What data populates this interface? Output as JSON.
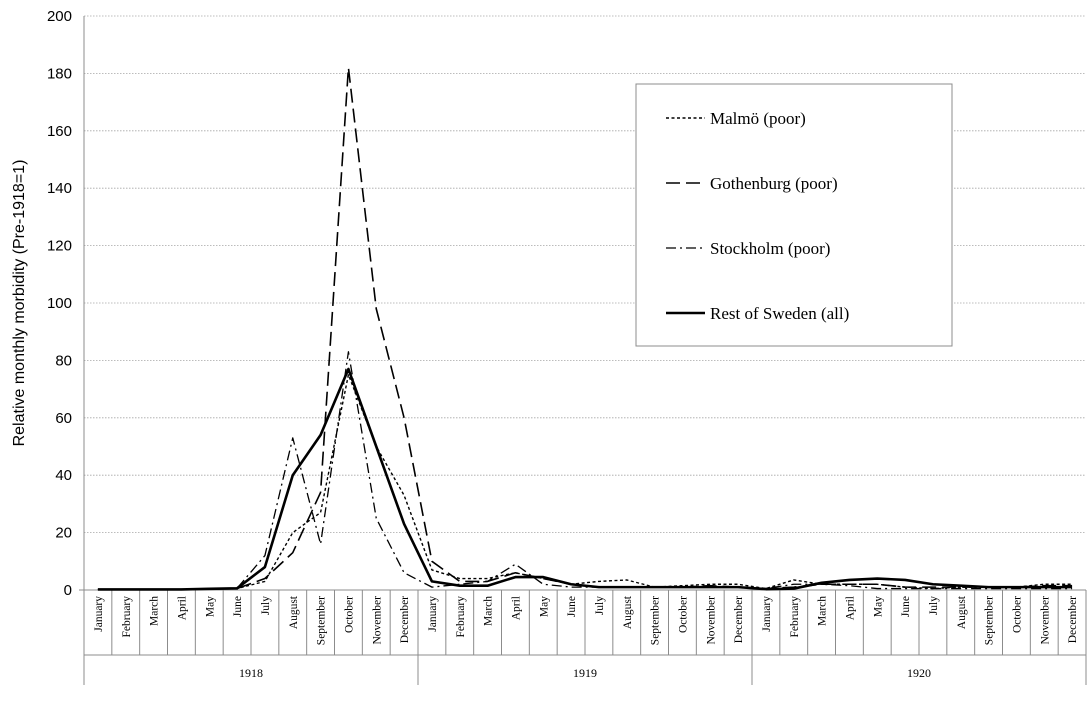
{
  "chart_data": {
    "type": "line",
    "title": "",
    "xlabel": "",
    "ylabel": "Relative monthly morbidity (Pre-1918=1)",
    "ylim": [
      0,
      200
    ],
    "yticks": [
      0,
      20,
      40,
      60,
      80,
      100,
      120,
      140,
      160,
      180,
      200
    ],
    "grid": true,
    "legend_position": "top-right",
    "categories": [
      "January",
      "February",
      "March",
      "April",
      "May",
      "June",
      "July",
      "August",
      "September",
      "October",
      "November",
      "December",
      "January",
      "February",
      "March",
      "April",
      "May",
      "June",
      "July",
      "August",
      "September",
      "October",
      "November",
      "December",
      "January",
      "February",
      "March",
      "April",
      "May",
      "June",
      "July",
      "August",
      "September",
      "October",
      "November",
      "December"
    ],
    "groups": [
      {
        "label": "1918",
        "start": 0,
        "end": 11
      },
      {
        "label": "1919",
        "start": 12,
        "end": 23
      },
      {
        "label": "1920",
        "start": 24,
        "end": 35
      }
    ],
    "series": [
      {
        "name": "Malmö (poor)",
        "dash": "short-dash",
        "values": [
          0.2,
          0.2,
          0.2,
          0.2,
          0.4,
          0.5,
          3,
          20,
          27,
          75,
          50,
          33,
          7,
          4,
          4,
          6,
          4,
          2,
          3,
          3.5,
          1,
          1.5,
          2,
          2,
          0.5,
          3.5,
          2,
          2,
          2,
          1,
          0.5,
          1,
          1,
          1,
          2,
          2
        ]
      },
      {
        "name": "Gothenburg (poor)",
        "dash": "long-dash",
        "values": [
          0.2,
          0.2,
          0.2,
          0.2,
          0.3,
          0.5,
          4,
          13,
          34,
          182,
          98,
          60,
          10,
          3,
          3,
          6,
          4,
          2,
          1,
          1,
          1,
          1,
          1.5,
          1,
          0.5,
          1,
          2,
          2,
          2,
          1,
          1,
          1,
          1,
          1,
          1.5,
          1.5
        ]
      },
      {
        "name": "Stockholm (poor)",
        "dash": "dash-dot",
        "values": [
          0.2,
          0.2,
          0.2,
          0.2,
          0.3,
          0.6,
          12,
          53,
          16,
          83,
          25,
          6,
          1,
          2,
          3,
          9,
          2,
          1,
          1,
          1,
          1,
          1,
          1,
          1,
          0.5,
          2,
          2,
          1.5,
          0.5,
          0.5,
          0.5,
          0.5,
          0.5,
          0.5,
          0.5,
          0.5
        ]
      },
      {
        "name": "Rest of Sweden (all)",
        "dash": "solid",
        "values": [
          0.2,
          0.2,
          0.2,
          0.2,
          0.4,
          0.6,
          8,
          40,
          54,
          77,
          50,
          23,
          3,
          1.5,
          1.5,
          4.5,
          4.5,
          2,
          1,
          1,
          1,
          1,
          1,
          1,
          0.3,
          0.5,
          2.5,
          3.5,
          4,
          3.5,
          2,
          1.5,
          1,
          1,
          1,
          1
        ]
      }
    ]
  }
}
